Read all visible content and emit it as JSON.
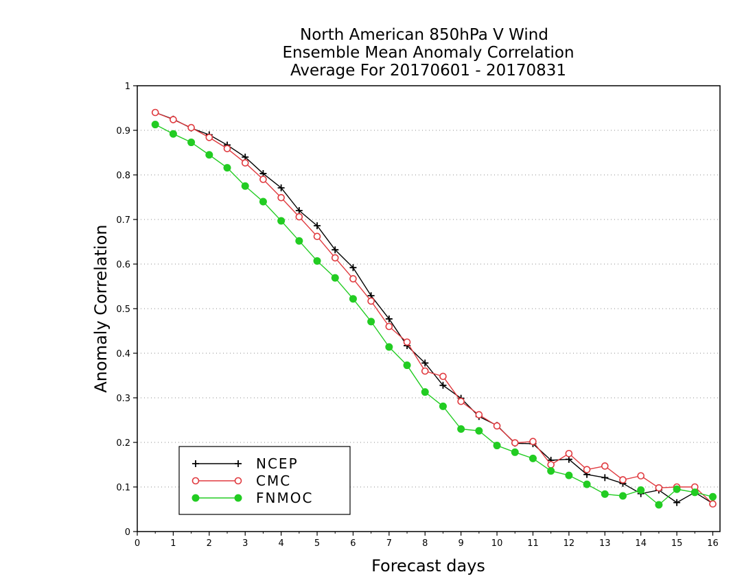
{
  "chart_data": {
    "type": "line",
    "title_lines": [
      "North American 850hPa V Wind",
      "Ensemble Mean Anomaly Correlation",
      "Average For 20170601 - 20170831"
    ],
    "xlabel": "Forecast days",
    "ylabel": "Anomaly Correlation",
    "xlim": [
      0,
      16.2
    ],
    "ylim": [
      0,
      1
    ],
    "xticks": [
      0,
      1,
      2,
      3,
      4,
      5,
      6,
      7,
      8,
      9,
      10,
      11,
      12,
      13,
      14,
      15,
      16
    ],
    "xtick_labels": [
      "0",
      "1",
      "2",
      "3",
      "4",
      "5",
      "6",
      "7",
      "8",
      "9",
      "10",
      "11",
      "12",
      "13",
      "14",
      "15",
      "16"
    ],
    "yticks": [
      0,
      0.1,
      0.2,
      0.3,
      0.4,
      0.5,
      0.6,
      0.7,
      0.8,
      0.9,
      1
    ],
    "ytick_labels": [
      "0",
      "0.1",
      "0.2",
      "0.3",
      "0.4",
      "0.5",
      "0.6",
      "0.7",
      "0.8",
      "0.9",
      "1"
    ],
    "grid": "horizontal dotted",
    "legend_position": "bottom-left",
    "x": [
      0.5,
      1,
      1.5,
      2,
      2.5,
      3,
      3.5,
      4,
      4.5,
      5,
      5.5,
      6,
      6.5,
      7,
      7.5,
      8,
      8.5,
      9,
      9.5,
      10,
      10.5,
      11,
      11.5,
      12,
      12.5,
      13,
      13.5,
      14,
      14.5,
      15,
      15.5,
      16
    ],
    "series": [
      {
        "name": "NCEP",
        "color": "#000000",
        "marker": "plus",
        "values": [
          0.94,
          0.925,
          0.905,
          0.89,
          0.867,
          0.84,
          0.803,
          0.771,
          0.72,
          0.686,
          0.632,
          0.592,
          0.529,
          0.477,
          0.417,
          0.378,
          0.328,
          0.299,
          0.258,
          0.238,
          0.198,
          0.197,
          0.16,
          0.162,
          0.128,
          0.121,
          0.108,
          0.085,
          0.093,
          0.065,
          0.088,
          0.063
        ]
      },
      {
        "name": "CMC",
        "color": "#e0393e",
        "marker": "open-circle",
        "values": [
          0.94,
          0.924,
          0.906,
          0.884,
          0.859,
          0.827,
          0.79,
          0.749,
          0.706,
          0.662,
          0.614,
          0.567,
          0.517,
          0.46,
          0.425,
          0.36,
          0.348,
          0.292,
          0.262,
          0.237,
          0.199,
          0.202,
          0.15,
          0.175,
          0.139,
          0.147,
          0.116,
          0.125,
          0.098,
          0.1,
          0.1,
          0.062
        ]
      },
      {
        "name": "FNMOC",
        "color": "#22cc22",
        "marker": "filled-circle",
        "values": [
          0.913,
          0.892,
          0.873,
          0.845,
          0.816,
          0.775,
          0.74,
          0.697,
          0.652,
          0.607,
          0.569,
          0.522,
          0.471,
          0.414,
          0.373,
          0.313,
          0.281,
          0.23,
          0.226,
          0.193,
          0.178,
          0.164,
          0.136,
          0.126,
          0.106,
          0.084,
          0.08,
          0.093,
          0.06,
          0.095,
          0.088,
          0.078
        ]
      }
    ]
  }
}
